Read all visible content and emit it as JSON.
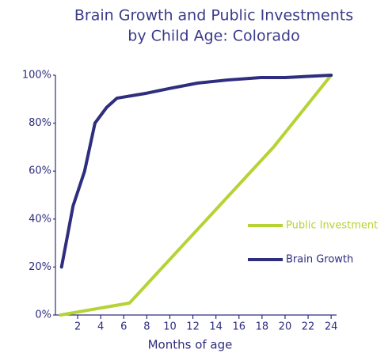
{
  "chart_data": {
    "type": "line",
    "title": [
      "Brain Growth and Public Investments",
      "by Child Age: Colorado"
    ],
    "x_label": "Months of age",
    "xlim": [
      0,
      25
    ],
    "xticks": [
      2,
      4,
      6,
      8,
      10,
      12,
      14,
      16,
      18,
      20,
      22,
      24
    ],
    "ylim": [
      0,
      100
    ],
    "yticks": [
      {
        "value": 0,
        "label": "0%"
      },
      {
        "value": 20,
        "label": "20%"
      },
      {
        "value": 40,
        "label": "40%"
      },
      {
        "value": 60,
        "label": "60%"
      },
      {
        "value": 80,
        "label": "80%"
      },
      {
        "value": 100,
        "label": "100%"
      }
    ],
    "series": [
      {
        "name": "Public Investment",
        "color": "#b5d334",
        "x": [
          0.5,
          6.5,
          19,
          24
        ],
        "values": [
          0,
          5,
          70,
          100
        ]
      },
      {
        "name": "Brain Growth",
        "color": "#2e2d7e",
        "x": [
          0.6,
          1.6,
          2.6,
          3.5,
          4.5,
          5.4,
          8,
          10,
          12.4,
          15,
          17.9,
          20,
          24
        ],
        "values": [
          20,
          45.5,
          60,
          80,
          86.5,
          90.4,
          92.5,
          94.5,
          96.7,
          98,
          99,
          99,
          100
        ]
      }
    ]
  }
}
